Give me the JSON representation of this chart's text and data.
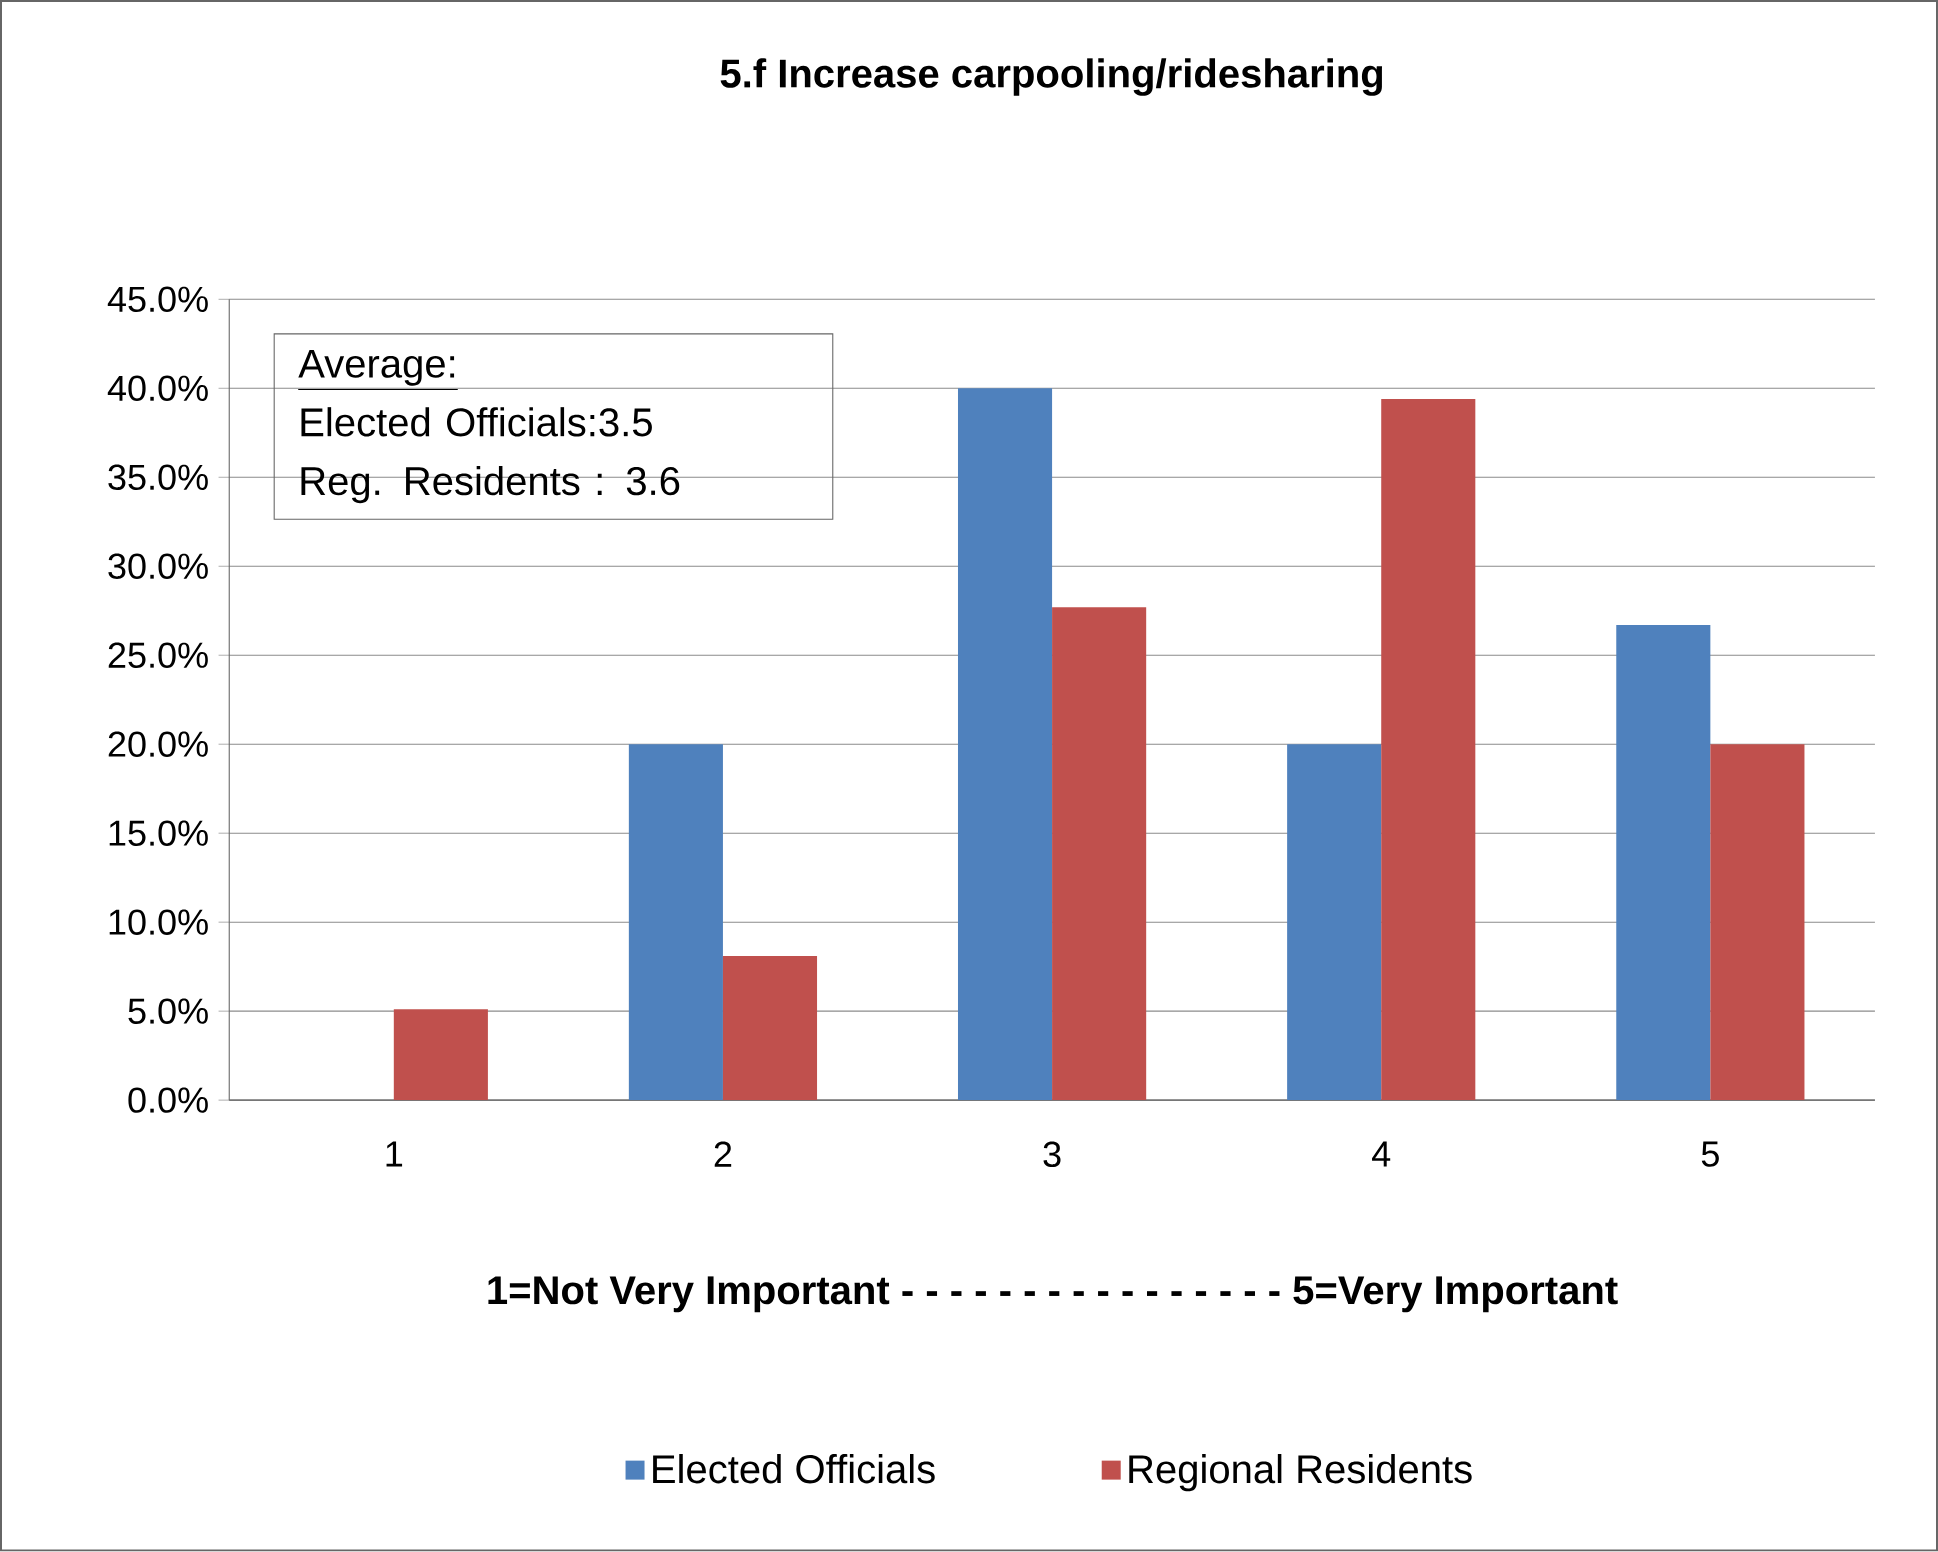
{
  "chart_data": {
    "type": "bar",
    "title": "5.f  Increase carpooling/ridesharing",
    "xlabel": "1=Not Very Important - - - - - - - - - - - - - - - -  5=Very Important",
    "annotations": [
      "Average:",
      "Elected Officials:3.5",
      "Reg. Residents :  3.6"
    ],
    "categories": [
      "1",
      "2",
      "3",
      "4",
      "5"
    ],
    "series": [
      {
        "name": "Elected Officials",
        "color": "#4f81bd",
        "values": [
          0,
          20.0,
          40.0,
          20.0,
          26.7
        ]
      },
      {
        "name": "Regional Residents",
        "color": "#c0504d",
        "values": [
          5.1,
          8.1,
          27.7,
          39.4,
          20.0
        ]
      }
    ],
    "ylim": [
      0,
      45
    ],
    "yticks": [
      {
        "value": 0,
        "label": "0.0%"
      },
      {
        "value": 5,
        "label": "5.0%"
      },
      {
        "value": 10,
        "label": "10.0%"
      },
      {
        "value": 15,
        "label": "15.0%"
      },
      {
        "value": 20,
        "label": "20.0%"
      },
      {
        "value": 25,
        "label": "25.0%"
      },
      {
        "value": 30,
        "label": "30.0%"
      },
      {
        "value": 35,
        "label": "35.0%"
      },
      {
        "value": 40,
        "label": "40.0%"
      },
      {
        "value": 45,
        "label": "45.0%"
      }
    ],
    "grid": "y",
    "legend": "bottom"
  }
}
